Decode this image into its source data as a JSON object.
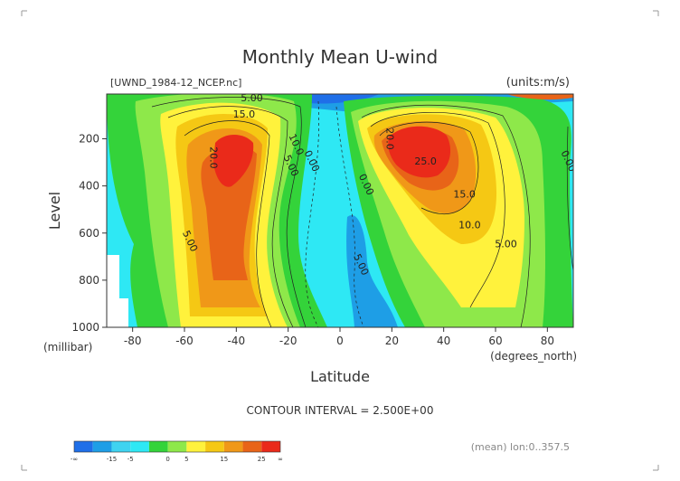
{
  "chart_data": {
    "type": "contour",
    "title": "Monthly Mean U-wind",
    "subtitle_left": "[UWND_1984-12_NCEP.nc]",
    "subtitle_right": "(units:m/s)",
    "xlabel": "Latitude",
    "ylabel": "Level",
    "x_units": "(degrees_north)",
    "y_units": "(millibar)",
    "xlim": [
      -90,
      90
    ],
    "ylim": [
      1000,
      10
    ],
    "x_ticks": [
      -80,
      -60,
      -40,
      -20,
      0,
      20,
      40,
      60,
      80
    ],
    "y_ticks": [
      200,
      400,
      600,
      800,
      1000
    ],
    "contour_interval_text": "CONTOUR INTERVAL = 2.500E+00",
    "info_text": "(mean) lon:0..357.5",
    "jets": [
      {
        "lat": -45,
        "level": 230,
        "peak": 27.5
      },
      {
        "lat": 32,
        "level": 200,
        "peak": 35
      },
      {
        "lat": 72,
        "level": 30,
        "peak": 27.5
      }
    ],
    "contour_labels": [
      {
        "text": "15.0",
        "lat": -37,
        "level": 110
      },
      {
        "text": "20.0",
        "lat": -50,
        "level": 280
      },
      {
        "text": "10.0",
        "lat": -18,
        "level": 230
      },
      {
        "text": "5.00",
        "lat": -20,
        "level": 320
      },
      {
        "text": "0.00",
        "lat": -12,
        "level": 300
      },
      {
        "text": "5.00",
        "lat": -59,
        "level": 640
      },
      {
        "text": "5.00",
        "lat": -34,
        "level": 40
      },
      {
        "text": "20.0",
        "lat": 18,
        "level": 200
      },
      {
        "text": "25.0",
        "lat": 33,
        "level": 310
      },
      {
        "text": "0.00",
        "lat": 9,
        "level": 400
      },
      {
        "text": "15.0",
        "lat": 48,
        "level": 450
      },
      {
        "text": "10.0",
        "lat": 50,
        "level": 580
      },
      {
        "text": "5.00",
        "lat": 64,
        "level": 660
      },
      {
        "text": "5.00",
        "lat": 7,
        "level": 740
      },
      {
        "text": "0.00",
        "lat": 87,
        "level": 300
      }
    ],
    "colorbar": {
      "labels": [
        "-∞",
        "-15",
        "-5",
        "0",
        "5",
        "15",
        "25",
        "∞"
      ],
      "colors": [
        "#1f6fe8",
        "#1e9ee6",
        "#3fd3f0",
        "#2ee8f4",
        "#34d33a",
        "#8ee84a",
        "#fff23c",
        "#f5c814",
        "#f09818",
        "#e86418",
        "#ea2a1a"
      ]
    },
    "legend": "bottom"
  }
}
